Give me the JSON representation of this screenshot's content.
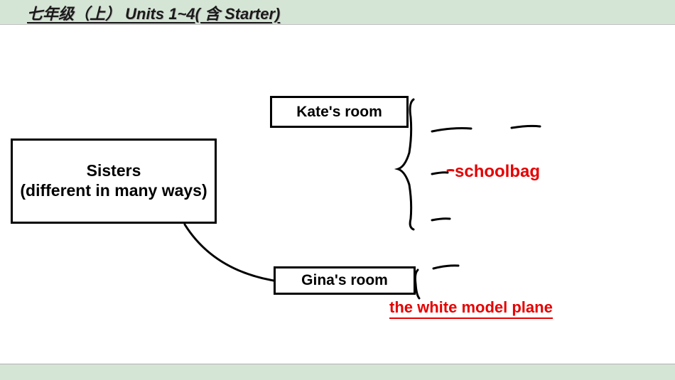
{
  "header": {
    "title": "七年级（上） Units 1~4( 含 Starter)"
  },
  "diagram": {
    "type": "mindmap",
    "root": {
      "label": "Sisters\n(different in many ways)"
    },
    "branches": [
      {
        "id": "kate",
        "label": "Kate's room"
      },
      {
        "id": "gina",
        "label": "Gina's room"
      }
    ],
    "annotations": [
      {
        "id": "schoolbag",
        "text": "schoolbag",
        "color": "#e60000",
        "attached_to": "kate"
      },
      {
        "id": "plane",
        "text": "the white model plane",
        "color": "#e60000",
        "attached_to": "gina"
      }
    ],
    "colors": {
      "header_bg": "#d5e5d5",
      "node_border": "#000000",
      "node_text": "#000000",
      "annotation_text": "#e60000",
      "stroke_hand": "#000000",
      "background": "#ffffff"
    },
    "stroke_width": 3
  }
}
